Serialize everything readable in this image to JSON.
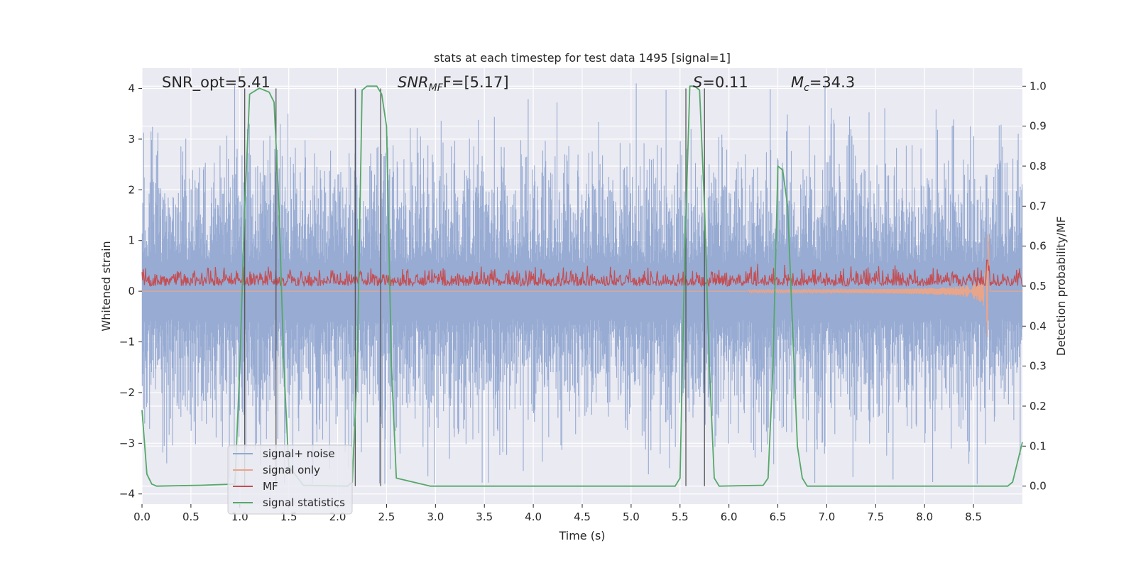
{
  "chart_data": {
    "type": "line",
    "title": "stats at each timestep for test data 1495 [signal=1]",
    "xlabel": "Time (s)",
    "ylabel_left": "Whitened strain",
    "ylabel_right": "Detection probability/MF",
    "xlim": [
      0.0,
      9.0
    ],
    "ylim_left": [
      -4.2,
      4.4
    ],
    "ylim_right": [
      -0.045,
      1.045
    ],
    "x_ticks": [
      "0.0",
      "0.5",
      "1.0",
      "1.5",
      "2.0",
      "2.5",
      "3.0",
      "3.5",
      "4.0",
      "4.5",
      "5.0",
      "5.5",
      "6.0",
      "6.5",
      "7.0",
      "7.5",
      "8.0",
      "8.5"
    ],
    "y_ticks_left": [
      "4",
      "3",
      "2",
      "1",
      "0",
      "−1",
      "−2",
      "−3",
      "−4"
    ],
    "y_ticks_right": [
      "1.0",
      "0.9",
      "0.8",
      "0.7",
      "0.6",
      "0.5",
      "0.4",
      "0.3",
      "0.2",
      "0.1",
      "0.0"
    ],
    "annotations": {
      "snr_opt": "SNR_opt=5.41",
      "snr_mf_main": "SNR",
      "snr_mf_sub": "MF",
      "snr_mf_tail": "F=[5.17]",
      "s_main": "S",
      "s_tail": "=0.11",
      "mc_main": "M",
      "mc_sub": "c",
      "mc_tail": "=34.3"
    },
    "vertical_markers": [
      1.05,
      1.37,
      2.18,
      2.44,
      5.56,
      5.75
    ],
    "series": [
      {
        "name": "signal+ noise",
        "color": "#92a8d1",
        "envelope": [
          -2.5,
          2.5
        ]
      },
      {
        "name": "signal only",
        "color": "#e8a58a",
        "peak_time": 8.65,
        "peak_amplitude": 1.3
      },
      {
        "name": "MF",
        "color": "#c44e52",
        "baseline": 0.5,
        "range": [
          0.5,
          0.555
        ]
      },
      {
        "name": "signal statistics",
        "color": "#55a868",
        "x": [
          0.0,
          0.05,
          0.1,
          0.15,
          0.6,
          0.95,
          1.0,
          1.05,
          1.1,
          1.2,
          1.3,
          1.35,
          1.4,
          1.45,
          1.5,
          1.65,
          2.1,
          2.15,
          2.2,
          2.25,
          2.3,
          2.4,
          2.45,
          2.5,
          2.55,
          2.6,
          2.95,
          5.45,
          5.5,
          5.55,
          5.6,
          5.65,
          5.7,
          5.75,
          5.8,
          5.85,
          5.9,
          6.35,
          6.4,
          6.45,
          6.5,
          6.55,
          6.6,
          6.65,
          6.7,
          6.75,
          6.8,
          8.85,
          8.9,
          8.95,
          9.0
        ],
        "values": [
          0.19,
          0.03,
          0.005,
          0.0,
          0.002,
          0.005,
          0.3,
          0.7,
          0.98,
          0.995,
          0.985,
          0.96,
          0.7,
          0.3,
          0.05,
          0.002,
          0.0,
          0.01,
          0.3,
          0.99,
          1.0,
          1.0,
          0.98,
          0.9,
          0.3,
          0.02,
          0.0,
          0.0,
          0.02,
          0.6,
          1.0,
          1.0,
          0.99,
          0.7,
          0.3,
          0.02,
          0.0,
          0.002,
          0.02,
          0.3,
          0.8,
          0.79,
          0.7,
          0.4,
          0.1,
          0.02,
          0.0,
          0.0,
          0.01,
          0.06,
          0.11
        ]
      }
    ],
    "legend": {
      "position": "lower-left",
      "entries": [
        {
          "label": "signal+ noise",
          "color": "#92a8d1"
        },
        {
          "label": "signal only",
          "color": "#e8a58a"
        },
        {
          "label": "MF",
          "color": "#c44e52"
        },
        {
          "label": "signal statistics",
          "color": "#55a868"
        }
      ]
    }
  }
}
